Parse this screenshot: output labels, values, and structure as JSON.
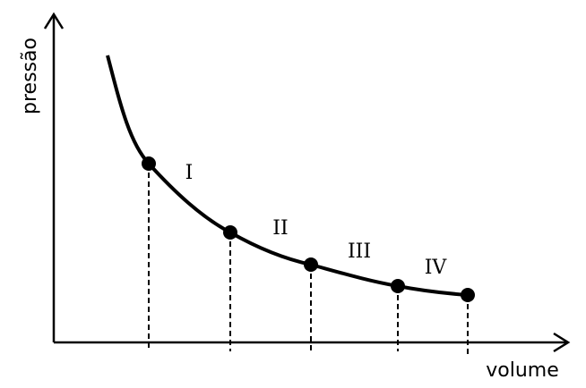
{
  "axes": {
    "x_label": "volume",
    "y_label": "pressão"
  },
  "regions": [
    {
      "label": "I"
    },
    {
      "label": "II"
    },
    {
      "label": "III"
    },
    {
      "label": "IV"
    }
  ]
}
